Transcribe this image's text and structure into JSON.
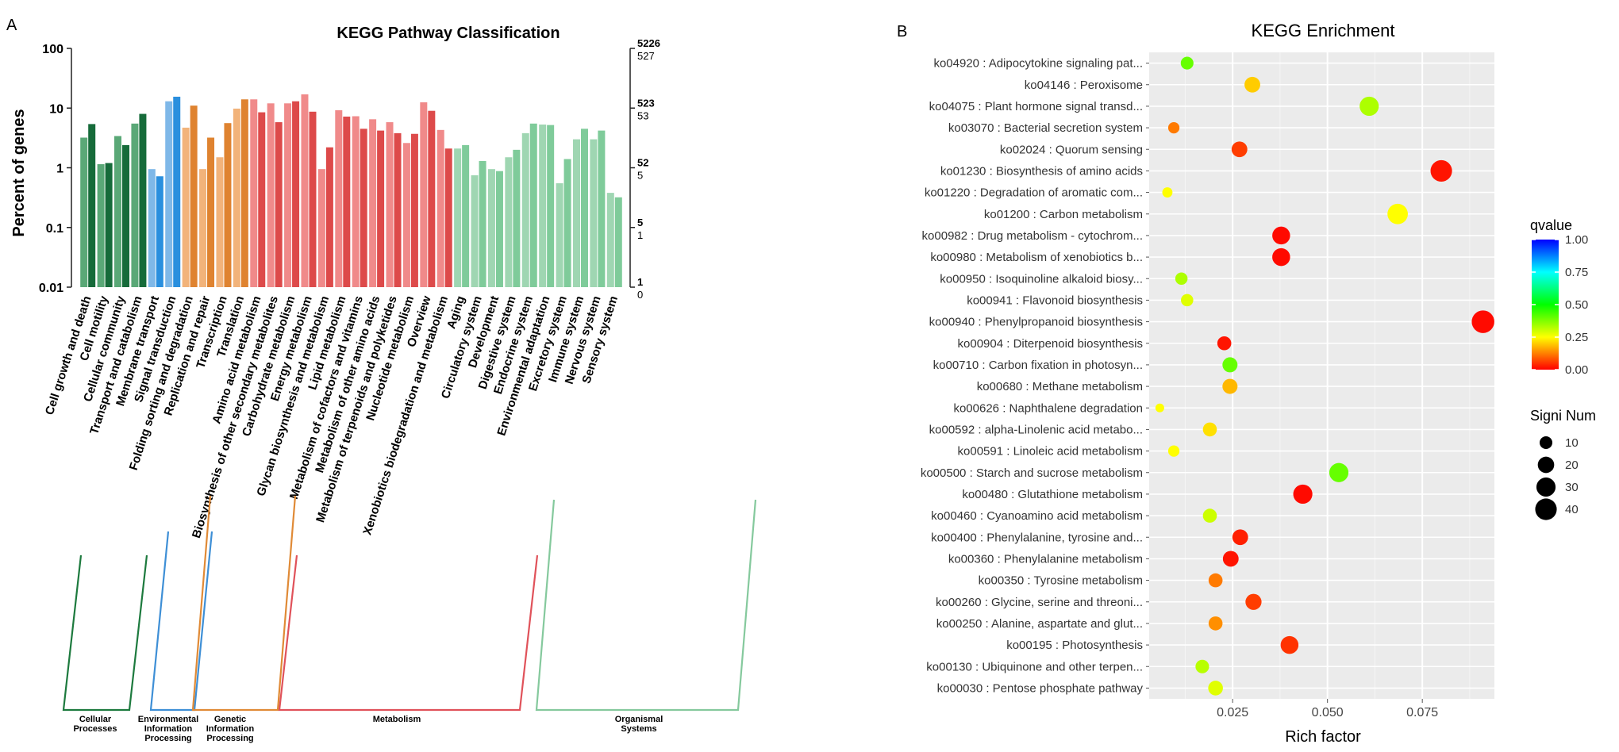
{
  "panel_labels": {
    "a": "A",
    "b": "B"
  },
  "colors": {
    "cellular": [
      "#5aa877",
      "#166b3a"
    ],
    "environmental": [
      "#7fb8e8",
      "#2a8fde"
    ],
    "genetic": [
      "#f2b37a",
      "#df8330"
    ],
    "metabolism": [
      "#f08a8a",
      "#dd4a4a"
    ],
    "organismal": [
      "#9fd6b2",
      "#7fcb9a"
    ],
    "bracket_cellular": "#1d7a3e",
    "bracket_environmental": "#3e8fd6",
    "bracket_genetic": "#e08a36",
    "bracket_metabolism": "#e0525a",
    "bracket_organismal": "#85c99d"
  },
  "chart_data": [
    {
      "type": "bar",
      "title": "KEGG Pathway Classification",
      "ylabel": "Percent of genes",
      "yscale": "log",
      "ylim": [
        0.01,
        100
      ],
      "left_ticks": [
        "100",
        "10",
        "1",
        "0.1",
        "0.01"
      ],
      "right_ticks": [
        {
          "top": "5226",
          "bottom": "527"
        },
        {
          "top": "523",
          "bottom": "53"
        },
        {
          "top": "52",
          "bottom": "5"
        },
        {
          "top": "5",
          "bottom": "1"
        },
        {
          "top": "1",
          "bottom": "0"
        }
      ],
      "categories": [
        "Cell growth and death",
        "Cell motility",
        "Cellular community",
        "Transport and catabolism",
        "Membrane transport",
        "Signal transduction",
        "Folding sorting and degradation",
        "Replication and repair",
        "Transcription",
        "Translation",
        "Amino acid metabolism",
        "Biosynthesis of other secondary metabolites",
        "Carbohydrate metabolism",
        "Energy metabolism",
        "Glycan biosynthesis and metabolism",
        "Lipid metabolism",
        "Metabolism of cofactors and vitamins",
        "Metabolism of other amino acids",
        "Metabolism of terpenoids and polyketides",
        "Nucleotide metabolism",
        "Overview",
        "Xenobiotics biodegradation and metabolism",
        "Aging",
        "Circulatory system",
        "Development",
        "Digestive system",
        "Endocrine system",
        "Environmental adaptation",
        "Excretory system",
        "Immune system",
        "Nervous system",
        "Sensory system"
      ],
      "groups": [
        "cellular",
        "cellular",
        "cellular",
        "cellular",
        "environmental",
        "environmental",
        "genetic",
        "genetic",
        "genetic",
        "genetic",
        "metabolism",
        "metabolism",
        "metabolism",
        "metabolism",
        "metabolism",
        "metabolism",
        "metabolism",
        "metabolism",
        "metabolism",
        "metabolism",
        "metabolism",
        "metabolism",
        "organismal",
        "organismal",
        "organismal",
        "organismal",
        "organismal",
        "organismal",
        "organismal",
        "organismal",
        "organismal",
        "organismal"
      ],
      "series": [
        {
          "name": "light",
          "values": [
            3.2,
            1.15,
            3.4,
            5.5,
            0.95,
            13,
            4.7,
            0.95,
            1.5,
            9.8,
            14,
            12,
            12,
            17,
            0.95,
            9.2,
            7.3,
            6.5,
            5.8,
            2.6,
            12.5,
            4.3,
            2.1,
            0.75,
            0.95,
            1.5,
            3.8,
            5.3,
            0.55,
            3.0,
            3.0,
            0.38
          ]
        },
        {
          "name": "dark",
          "values": [
            5.4,
            1.2,
            2.4,
            8.0,
            0.72,
            15.5,
            11,
            3.2,
            5.6,
            14,
            8.5,
            5.8,
            13,
            8.7,
            2.2,
            7.2,
            4.5,
            4.2,
            3.8,
            3.7,
            9.0,
            2.1,
            2.4,
            1.3,
            0.88,
            2.0,
            5.5,
            5.2,
            1.4,
            4.5,
            4.2,
            0.32
          ]
        }
      ],
      "group_labels": [
        {
          "group": "cellular",
          "lines": [
            "Cellular",
            "Processes"
          ]
        },
        {
          "group": "environmental",
          "lines": [
            "Environmental",
            "Information",
            "Processing"
          ]
        },
        {
          "group": "genetic",
          "lines": [
            "Genetic",
            "Information",
            "Processing"
          ]
        },
        {
          "group": "metabolism",
          "lines": [
            "Metabolism"
          ]
        },
        {
          "group": "organismal",
          "lines": [
            "Organismal",
            "Systems"
          ]
        }
      ]
    },
    {
      "type": "scatter",
      "title": "KEGG Enrichment",
      "xlabel": "Rich factor",
      "xlim": [
        0.003,
        0.094
      ],
      "xticks": [
        0.025,
        0.05,
        0.075
      ],
      "xtick_labels": [
        "0.025",
        "0.050",
        "0.075"
      ],
      "legend_position": "right",
      "color_legend": {
        "title": "qvalue",
        "ticks": [
          "1.00",
          "0.75",
          "0.50",
          "0.25",
          "0.00"
        ],
        "range": [
          0,
          1
        ]
      },
      "size_legend": {
        "title": "Signi Num",
        "values": [
          10,
          20,
          30,
          40
        ],
        "labels": [
          "10",
          "20",
          "30",
          "40"
        ]
      },
      "points": [
        {
          "label": "ko04920 : Adipocytokine signaling pat...",
          "x": 0.013,
          "q": 0.4,
          "n": 10
        },
        {
          "label": "ko04146 : Peroxisome",
          "x": 0.0302,
          "q": 0.2,
          "n": 18
        },
        {
          "label": "ko04075 : Plant hormone signal transd...",
          "x": 0.061,
          "q": 0.33,
          "n": 30
        },
        {
          "label": "ko03070 : Bacterial secretion system",
          "x": 0.0095,
          "q": 0.12,
          "n": 7
        },
        {
          "label": "ko02024 : Quorum sensing",
          "x": 0.0268,
          "q": 0.06,
          "n": 18
        },
        {
          "label": "ko01230 : Biosynthesis of amino acids",
          "x": 0.08,
          "q": 0.02,
          "n": 40
        },
        {
          "label": "ko01220 : Degradation of aromatic com...",
          "x": 0.0078,
          "q": 0.25,
          "n": 5
        },
        {
          "label": "ko01200 : Carbon metabolism",
          "x": 0.0685,
          "q": 0.25,
          "n": 35
        },
        {
          "label": "ko00982 : Drug metabolism - cytochrom...",
          "x": 0.0378,
          "q": 0.01,
          "n": 25
        },
        {
          "label": "ko00980 : Metabolism of xenobiotics b...",
          "x": 0.0378,
          "q": 0.01,
          "n": 25
        },
        {
          "label": "ko00950 : Isoquinoline alkaloid biosy...",
          "x": 0.0115,
          "q": 0.33,
          "n": 9
        },
        {
          "label": "ko00941 : Flavonoid biosynthesis",
          "x": 0.013,
          "q": 0.28,
          "n": 9
        },
        {
          "label": "ko00940 : Phenylpropanoid biosynthesis",
          "x": 0.091,
          "q": 0.01,
          "n": 45
        },
        {
          "label": "ko00904 : Diterpenoid biosynthesis",
          "x": 0.0228,
          "q": 0.02,
          "n": 13
        },
        {
          "label": "ko00710 : Carbon fixation in photosyn...",
          "x": 0.0243,
          "q": 0.4,
          "n": 16
        },
        {
          "label": "ko00680 : Methane metabolism",
          "x": 0.0243,
          "q": 0.18,
          "n": 16
        },
        {
          "label": "ko00626 : Naphthalene degradation",
          "x": 0.0058,
          "q": 0.25,
          "n": 3
        },
        {
          "label": "ko00592 : alpha-Linolenic acid metabo...",
          "x": 0.019,
          "q": 0.22,
          "n": 13
        },
        {
          "label": "ko00591 : Linoleic acid metabolism",
          "x": 0.0095,
          "q": 0.25,
          "n": 7
        },
        {
          "label": "ko00500 : Starch and sucrose metabolism",
          "x": 0.053,
          "q": 0.4,
          "n": 30
        },
        {
          "label": "ko00480 : Glutathione metabolism",
          "x": 0.0435,
          "q": 0.01,
          "n": 30
        },
        {
          "label": "ko00460 : Cyanoamino acid metabolism",
          "x": 0.019,
          "q": 0.3,
          "n": 13
        },
        {
          "label": "ko00400 : Phenylalanine, tyrosine and...",
          "x": 0.027,
          "q": 0.03,
          "n": 18
        },
        {
          "label": "ko00360 : Phenylalanine metabolism",
          "x": 0.0245,
          "q": 0.02,
          "n": 18
        },
        {
          "label": "ko00350 : Tyrosine metabolism",
          "x": 0.0205,
          "q": 0.12,
          "n": 13
        },
        {
          "label": "ko00260 : Glycine, serine and threoni...",
          "x": 0.0305,
          "q": 0.06,
          "n": 19
        },
        {
          "label": "ko00250 : Alanine, aspartate and glut...",
          "x": 0.0205,
          "q": 0.14,
          "n": 13
        },
        {
          "label": "ko00195 : Photosynthesis",
          "x": 0.04,
          "q": 0.05,
          "n": 25
        },
        {
          "label": "ko00130 : Ubiquinone and other terpen...",
          "x": 0.017,
          "q": 0.32,
          "n": 12
        },
        {
          "label": "ko00030 : Pentose phosphate pathway",
          "x": 0.0205,
          "q": 0.28,
          "n": 15
        }
      ]
    }
  ]
}
